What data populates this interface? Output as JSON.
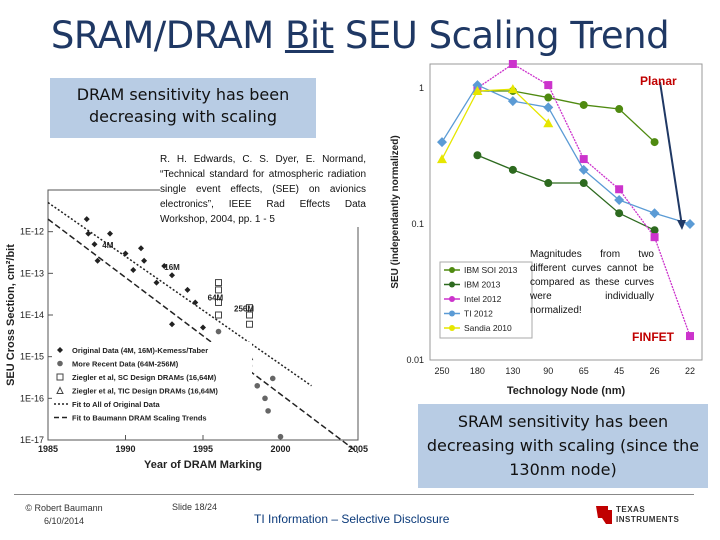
{
  "title": {
    "before": "SRAM/DRAM ",
    "underlined": "Bit",
    "after": " SEU Scaling Trend"
  },
  "callout_dram": "DRAM sensitivity has been decreasing with scaling",
  "callout_sram": "SRAM sensitivity has been decreasing with scaling (since the 130nm node)",
  "reference": "R. H. Edwards, C. S. Dyer, E. Normand, “Technical standard for atmospheric radiation single event effects, (SEE) on avionics electronics”, IEEE Rad Effects Data Workshop, 2004, pp. 1 - 5",
  "magnitudes_note": "Magnitudes from two different curves cannot be compared as these curves were individually normalized!",
  "planar_label": "Planar",
  "finfet_label": "FINFET",
  "footer": {
    "copyright_line1": "© Robert Baumann",
    "copyright_line2": "6/10/2014",
    "slide": "Slide 18/24",
    "disclosure": "TI Information – Selective Disclosure",
    "logo_line1": "TEXAS",
    "logo_line2": "INSTRUMENTS"
  },
  "colors": {
    "title": "#1f3864",
    "callout": "#b8cce4",
    "accent_red": "#c00000"
  },
  "chart_data": [
    {
      "type": "scatter",
      "title": "",
      "xlabel": "Year of DRAM Marking",
      "ylabel": "SEU Cross Section, cm²/bit",
      "xlim": [
        1985,
        2005
      ],
      "ylim": [
        1e-17,
        1e-11
      ],
      "y_scale": "log",
      "x_ticks": [
        "1985",
        "1990",
        "1995",
        "2000",
        "2005"
      ],
      "y_ticks": [
        "1E-17",
        "1E-16",
        "1E-15",
        "1E-14",
        "1E-13",
        "1E-12"
      ],
      "annotations": [
        "4M",
        "16M",
        "64M",
        "256M"
      ],
      "legend": [
        "Original Data (4M, 16M)-Kemess/Taber",
        "More Recent Data (64M-256M)",
        "Ziegler et al, SC Design DRAMs (16,64M)",
        "Ziegler et al, TIC Design DRAMs (16,64M)",
        "Fit to All of Original Data",
        "Fit to Baumann DRAM Scaling Trends"
      ],
      "series": [
        {
          "name": "Original Data (4M, 16M)-Kemess/Taber",
          "x": [
            1987.5,
            1987.6,
            1988,
            1988.2,
            1989,
            1990,
            1990.5,
            1991,
            1991.2,
            1992,
            1992.5,
            1993,
            1993,
            1994,
            1994.5,
            1995
          ],
          "y": [
            2e-12,
            9e-13,
            5e-13,
            2e-13,
            9e-13,
            3e-13,
            1.2e-13,
            4e-13,
            2e-13,
            6e-14,
            1.5e-13,
            9e-14,
            6e-15,
            4e-14,
            2e-14,
            5e-15
          ]
        },
        {
          "name": "More Recent Data (64M-256M)",
          "x": [
            1998,
            1998.5,
            1999,
            1999.2,
            2000,
            1997.5,
            1996,
            1999.5
          ],
          "y": [
            6e-16,
            2e-16,
            1e-16,
            5e-17,
            1.2e-17,
            1e-15,
            4e-15,
            3e-16
          ]
        },
        {
          "name": "Ziegler et al, SC Design DRAMs (16,64M)",
          "x": [
            1996,
            1996,
            1996,
            1996,
            1998,
            1998,
            1998
          ],
          "y": [
            6e-14,
            4e-14,
            2e-14,
            1e-14,
            1.5e-14,
            1e-14,
            6e-15
          ]
        },
        {
          "name": "Ziegler et al, TIC Design DRAMs (16,64M)",
          "x": [
            1998
          ],
          "y": [
            1e-15
          ]
        }
      ],
      "fits": [
        {
          "name": "Fit to All of Original Data",
          "x": [
            1985,
            2002
          ],
          "y": [
            5e-12,
            2e-16
          ]
        },
        {
          "name": "Fit to Baumann DRAM Scaling Trends",
          "x": [
            1985,
            2005
          ],
          "y": [
            2e-12,
            5e-18
          ]
        }
      ]
    },
    {
      "type": "line",
      "title": "",
      "xlabel": "Technology Node (nm)",
      "ylabel": "SEU (independantly normalized)",
      "y_scale": "log",
      "ylim": [
        0.01,
        1.5
      ],
      "categories": [
        "250",
        "180",
        "130",
        "90",
        "65",
        "45",
        "26",
        "22"
      ],
      "y_ticks": [
        "0.01",
        "0.1",
        "1"
      ],
      "series": [
        {
          "name": "IBM SOI 2013",
          "color": "#4f8a10",
          "values": [
            null,
            0.95,
            0.95,
            0.85,
            0.75,
            0.7,
            0.4,
            null
          ]
        },
        {
          "name": "IBM 2013",
          "color": "#2d6a1f",
          "values": [
            null,
            0.32,
            0.25,
            0.2,
            0.2,
            0.12,
            0.09,
            null
          ]
        },
        {
          "name": "Intel 2012",
          "color": "#cc33cc",
          "values": [
            null,
            1.0,
            1.5,
            1.05,
            0.3,
            0.18,
            0.08,
            0.015
          ]
        },
        {
          "name": "TI 2012",
          "color": "#5b9bd5",
          "values": [
            0.4,
            1.05,
            0.8,
            0.72,
            0.25,
            0.15,
            0.12,
            0.1
          ]
        },
        {
          "name": "Sandia 2010",
          "color": "#e6e600",
          "values": [
            0.3,
            0.95,
            0.98,
            0.55,
            null,
            null,
            null,
            null
          ]
        }
      ]
    }
  ]
}
